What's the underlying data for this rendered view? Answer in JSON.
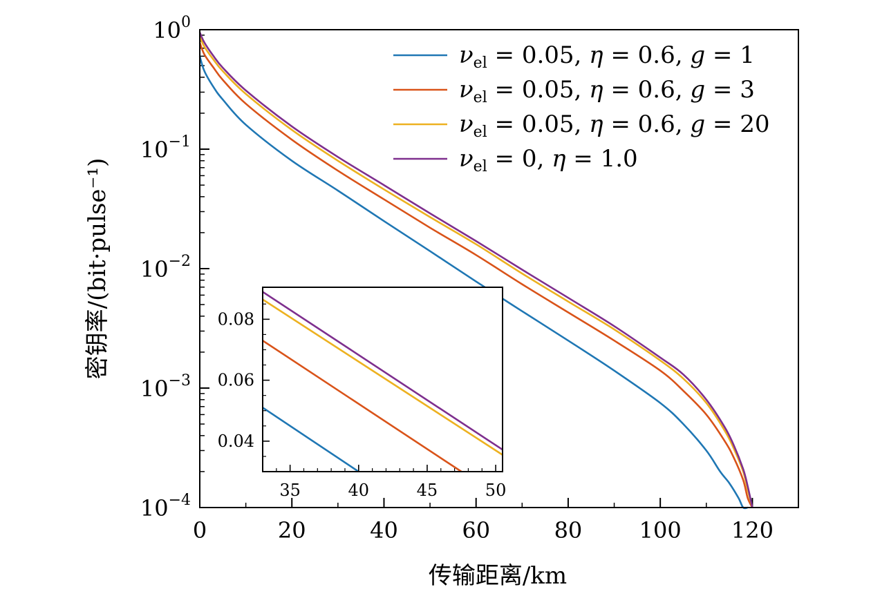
{
  "chart_data": {
    "type": "line",
    "xlabel": "传输距离/km",
    "ylabel": "密钥率/(bit·pulse⁻¹)",
    "xlim": [
      0,
      130
    ],
    "ylim": [
      0.0001,
      1
    ],
    "yscale": "log",
    "x_ticks": [
      0,
      20,
      40,
      60,
      80,
      100,
      120
    ],
    "x_tick_labels": [
      "0",
      "20",
      "40",
      "60",
      "80",
      "100",
      "120"
    ],
    "y_ticks": [
      1,
      0.1,
      0.01,
      0.001,
      0.0001
    ],
    "y_tick_labels": [
      {
        "base": "10",
        "exp": "0"
      },
      {
        "base": "10",
        "exp": "−1"
      },
      {
        "base": "10",
        "exp": "−2"
      },
      {
        "base": "10",
        "exp": "−3"
      },
      {
        "base": "10",
        "exp": "−4"
      }
    ],
    "grid": false,
    "legend_position": "top-right",
    "series": [
      {
        "name": "ν_el = 0.05, η = 0.6, g = 1",
        "color": "#1f77b4",
        "x": [
          0,
          1,
          3,
          5,
          10,
          20,
          30,
          40,
          50,
          60,
          70,
          80,
          90,
          100,
          105,
          110,
          113,
          115,
          117,
          118,
          119
        ],
        "y": [
          0.6,
          0.45,
          0.33,
          0.26,
          0.16,
          0.08,
          0.045,
          0.025,
          0.014,
          0.0078,
          0.0044,
          0.0025,
          0.0014,
          0.00075,
          0.0005,
          0.0003,
          0.0002,
          0.00016,
          0.00012,
          0.0001,
          0.0001
        ]
      },
      {
        "name": "ν_el = 0.05, η = 0.6, g = 3",
        "color": "#d95319",
        "x": [
          0,
          1,
          3,
          5,
          10,
          20,
          30,
          40,
          50,
          60,
          70,
          80,
          90,
          100,
          105,
          110,
          114,
          116,
          118,
          119,
          120
        ],
        "y": [
          0.78,
          0.62,
          0.48,
          0.38,
          0.24,
          0.12,
          0.066,
          0.038,
          0.022,
          0.013,
          0.0074,
          0.0043,
          0.0025,
          0.0014,
          0.00095,
          0.0006,
          0.00036,
          0.00026,
          0.00017,
          0.00012,
          0.0001
        ]
      },
      {
        "name": "ν_el = 0.05, η = 0.6, g = 20",
        "color": "#edb120",
        "x": [
          0,
          1,
          3,
          5,
          10,
          20,
          30,
          40,
          50,
          60,
          70,
          80,
          90,
          100,
          105,
          110,
          114,
          116,
          118,
          119,
          120
        ],
        "y": [
          0.88,
          0.72,
          0.56,
          0.45,
          0.29,
          0.145,
          0.08,
          0.046,
          0.027,
          0.016,
          0.0091,
          0.0053,
          0.0031,
          0.0017,
          0.0012,
          0.00075,
          0.00044,
          0.00031,
          0.0002,
          0.00014,
          0.0001
        ]
      },
      {
        "name": "ν_el = 0, η = 1.0",
        "color": "#7e2f8e",
        "x": [
          0,
          1,
          3,
          5,
          10,
          20,
          30,
          40,
          50,
          60,
          70,
          80,
          90,
          100,
          105,
          110,
          114,
          116,
          118,
          119,
          120
        ],
        "y": [
          0.95,
          0.78,
          0.6,
          0.48,
          0.31,
          0.155,
          0.086,
          0.05,
          0.029,
          0.017,
          0.0098,
          0.0057,
          0.0033,
          0.0018,
          0.0013,
          0.0008,
          0.00047,
          0.00033,
          0.00021,
          0.00015,
          0.0001
        ]
      }
    ],
    "inset": {
      "xlim": [
        33,
        50.5
      ],
      "ylim": [
        0.03,
        0.0905
      ],
      "x_ticks": [
        35,
        40,
        45,
        50
      ],
      "x_tick_labels": [
        "35",
        "40",
        "45",
        "50"
      ],
      "y_ticks": [
        0.04,
        0.06,
        0.08
      ],
      "y_tick_labels": [
        "0.04",
        "0.06",
        "0.08"
      ],
      "series": [
        {
          "color": "#1f77b4",
          "x": [
            33,
            40
          ],
          "y": [
            0.051,
            0.03
          ]
        },
        {
          "color": "#d95319",
          "x": [
            33,
            47.5
          ],
          "y": [
            0.073,
            0.03
          ]
        },
        {
          "color": "#edb120",
          "x": [
            33,
            50.5
          ],
          "y": [
            0.0865,
            0.0355
          ]
        },
        {
          "color": "#7e2f8e",
          "x": [
            33,
            50.5
          ],
          "y": [
            0.089,
            0.0372
          ]
        }
      ]
    }
  },
  "legend_entries": [
    {
      "nu_symbol": "ν",
      "nu_sub": "el",
      "nu_value": "= 0.05,",
      "eta_symbol": "η",
      "eta_value": "= 0.6,",
      "g_symbol": "g",
      "g_value": "= 1"
    },
    {
      "nu_symbol": "ν",
      "nu_sub": "el",
      "nu_value": "= 0.05,",
      "eta_symbol": "η",
      "eta_value": "= 0.6,",
      "g_symbol": "g",
      "g_value": "= 3"
    },
    {
      "nu_symbol": "ν",
      "nu_sub": "el",
      "nu_value": "= 0.05,",
      "eta_symbol": "η",
      "eta_value": "= 0.6,",
      "g_symbol": "g",
      "g_value": "= 20"
    },
    {
      "nu_symbol": "ν",
      "nu_sub": "el",
      "nu_value": "= 0,",
      "eta_symbol": "η",
      "eta_value": "= 1.0",
      "g_symbol": "",
      "g_value": ""
    }
  ]
}
